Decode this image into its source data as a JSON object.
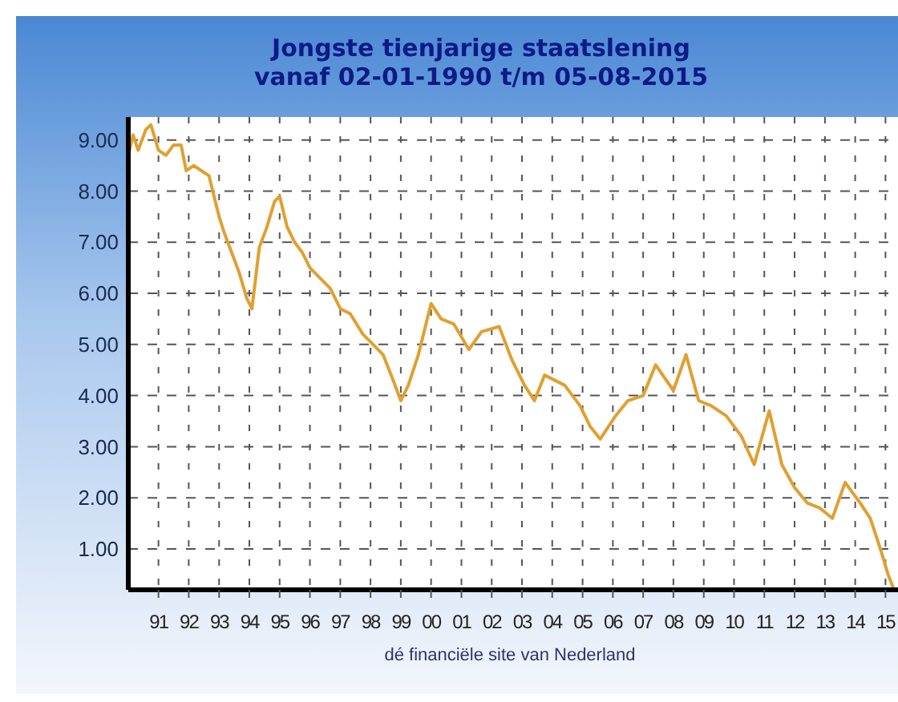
{
  "chart_data": {
    "type": "line",
    "title": "Jongste tienjarige staatslening\nvanaf 02-01-1990 t/m 05-08-2015",
    "x": [
      "1990-01-02",
      "1990-03",
      "1990-05",
      "1990-08",
      "1990-10",
      "1991-01",
      "1991-04",
      "1991-07",
      "1991-10",
      "1991-12",
      "1992-03",
      "1992-06",
      "1992-09",
      "1993-01",
      "1993-03",
      "1993-06",
      "1993-09",
      "1993-12",
      "1994-02",
      "1994-05",
      "1994-08",
      "1994-11",
      "1995-01",
      "1995-04",
      "1995-07",
      "1995-10",
      "1996-01",
      "1996-05",
      "1996-09",
      "1997-01",
      "1997-05",
      "1997-10",
      "1998-02",
      "1998-06",
      "1998-10",
      "1999-01",
      "1999-04",
      "1999-08",
      "2000-01",
      "2000-05",
      "2000-10",
      "2001-04",
      "2001-09",
      "2002-04",
      "2002-09",
      "2003-02",
      "2003-06",
      "2003-10",
      "2004-06",
      "2004-12",
      "2005-04",
      "2005-08",
      "2006-02",
      "2006-07",
      "2007-01",
      "2007-06",
      "2008-01",
      "2008-06",
      "2008-11",
      "2009-04",
      "2009-10",
      "2010-04",
      "2010-09",
      "2011-03",
      "2011-08",
      "2012-01",
      "2012-06",
      "2012-11",
      "2013-04",
      "2013-09",
      "2014-03",
      "2014-07",
      "2014-11",
      "2015-02",
      "2015-04"
    ],
    "series": [
      {
        "color": "#e0a030",
        "values": [
          8.7,
          9.1,
          8.8,
          9.2,
          9.3,
          8.8,
          8.7,
          8.9,
          8.9,
          8.4,
          8.5,
          8.4,
          8.3,
          7.5,
          7.2,
          6.8,
          6.4,
          5.9,
          5.7,
          6.9,
          7.3,
          7.8,
          7.9,
          7.3,
          7.0,
          6.8,
          6.5,
          6.3,
          6.1,
          5.7,
          5.6,
          5.2,
          5.0,
          4.8,
          4.3,
          3.9,
          4.2,
          4.8,
          5.8,
          5.5,
          5.4,
          4.9,
          5.25,
          5.35,
          4.7,
          4.2,
          3.9,
          4.4,
          4.2,
          3.8,
          3.4,
          3.15,
          3.6,
          3.9,
          4.0,
          4.6,
          4.1,
          4.8,
          3.9,
          3.8,
          3.6,
          3.2,
          2.65,
          3.7,
          2.65,
          2.2,
          1.9,
          1.8,
          1.6,
          2.3,
          1.9,
          1.6,
          1.0,
          0.5,
          0.25
        ]
      }
    ],
    "xlim": [
      "1990-01-02",
      "2015-06-01"
    ],
    "xticks": [
      {
        "value": "1991-01-01",
        "label": "91"
      },
      {
        "value": "1992-01-01",
        "label": "92"
      },
      {
        "value": "1993-01-01",
        "label": "93"
      },
      {
        "value": "1994-01-01",
        "label": "94"
      },
      {
        "value": "1995-01-01",
        "label": "95"
      },
      {
        "value": "1996-01-01",
        "label": "96"
      },
      {
        "value": "1997-01-01",
        "label": "97"
      },
      {
        "value": "1998-01-01",
        "label": "98"
      },
      {
        "value": "1999-01-01",
        "label": "99"
      },
      {
        "value": "2000-01-01",
        "label": "00"
      },
      {
        "value": "2001-01-01",
        "label": "01"
      },
      {
        "value": "2002-01-01",
        "label": "02"
      },
      {
        "value": "2003-01-01",
        "label": "03"
      },
      {
        "value": "2004-01-01",
        "label": "04"
      },
      {
        "value": "2005-01-01",
        "label": "05"
      },
      {
        "value": "2006-01-01",
        "label": "06"
      },
      {
        "value": "2007-01-01",
        "label": "07"
      },
      {
        "value": "2008-01-01",
        "label": "08"
      },
      {
        "value": "2009-01-01",
        "label": "09"
      },
      {
        "value": "2010-01-01",
        "label": "10"
      },
      {
        "value": "2011-01-01",
        "label": "11"
      },
      {
        "value": "2012-01-01",
        "label": "12"
      },
      {
        "value": "2013-01-01",
        "label": "13"
      },
      {
        "value": "2014-01-01",
        "label": "14"
      },
      {
        "value": "2015-01-01",
        "label": "15"
      }
    ],
    "ylim": [
      0.2,
      9.45
    ],
    "yticks": [
      {
        "value": 1,
        "label": "1.00"
      },
      {
        "value": 2,
        "label": "2.00"
      },
      {
        "value": 3,
        "label": "3.00"
      },
      {
        "value": 4,
        "label": "4.00"
      },
      {
        "value": 5,
        "label": "5.00"
      },
      {
        "value": 6,
        "label": "6.00"
      },
      {
        "value": 7,
        "label": "7.00"
      },
      {
        "value": 8,
        "label": "8.00"
      },
      {
        "value": 9,
        "label": "9.00"
      }
    ],
    "grid": true,
    "annotations": [
      "dé financiële site van Nederland"
    ]
  }
}
